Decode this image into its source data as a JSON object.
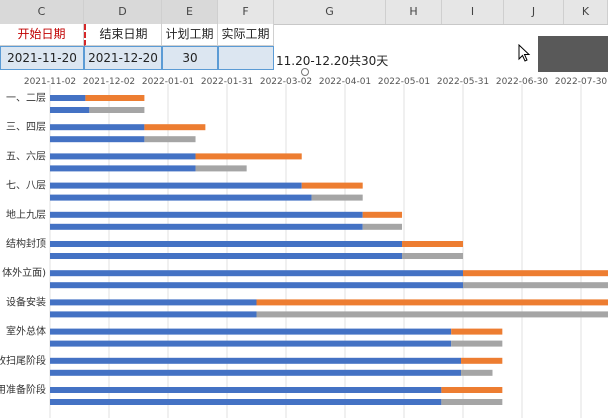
{
  "columns": [
    {
      "letter": "C"
    },
    {
      "letter": "D"
    },
    {
      "letter": "E"
    },
    {
      "letter": "F"
    },
    {
      "letter": "G"
    },
    {
      "letter": "H"
    },
    {
      "letter": "I"
    },
    {
      "letter": "J"
    },
    {
      "letter": "K"
    }
  ],
  "table": {
    "headers": [
      "开始日期",
      "结束日期",
      "计划工期",
      "实际工期"
    ],
    "values": [
      "2021-11-20",
      "2021-12-20",
      "30",
      ""
    ],
    "note": "11.20-12.20共30天"
  },
  "colors": {
    "planned": "#4472c4",
    "overrun": "#ed7d31",
    "actual": "#a5a5a5",
    "header_red": "#c00000"
  },
  "chart_data": {
    "type": "bar",
    "orientation": "horizontal-stacked-gantt",
    "x_ticks": [
      "2021-11-02",
      "2021-12-02",
      "2022-01-01",
      "2022-01-31",
      "2022-03-02",
      "2022-04-01",
      "2022-05-01",
      "2022-05-31",
      "2022-06-30",
      "2022-07-30"
    ],
    "categories": [
      "一、二层",
      "三、四层",
      "五、六层",
      "七、八层",
      "地上九层",
      "结构封顶",
      "幕墙(外立面)",
      "设备安装",
      "室外总体",
      "收扫尾阶段",
      "竣工准备阶段"
    ],
    "category_labels_visible": [
      "一、二层",
      "三、四层",
      "五、六层",
      "七、八层",
      "地上九层",
      "结构封顶",
      "体外立面)",
      "设备安装",
      "室外总体",
      "收扫尾阶段",
      "用准备阶段"
    ],
    "rows": [
      {
        "plan_start": "2021-11-02",
        "plan_end": "2021-11-20",
        "plan_finish": "2021-12-20",
        "actual_start": "2021-11-02",
        "actual_end": "2021-11-22",
        "actual_finish": "2021-12-20"
      },
      {
        "plan_start": "2021-11-02",
        "plan_end": "2021-12-20",
        "plan_finish": "2022-01-20",
        "actual_start": "2021-11-02",
        "actual_end": "2021-12-20",
        "actual_finish": "2022-01-15"
      },
      {
        "plan_start": "2021-11-02",
        "plan_end": "2022-01-15",
        "plan_finish": "2022-03-10",
        "actual_start": "2021-11-02",
        "actual_end": "2022-01-15",
        "actual_finish": "2022-02-10"
      },
      {
        "plan_start": "2021-11-02",
        "plan_end": "2022-03-10",
        "plan_finish": "2022-04-10",
        "actual_start": "2021-11-02",
        "actual_end": "2022-03-15",
        "actual_finish": "2022-04-10"
      },
      {
        "plan_start": "2021-11-02",
        "plan_end": "2022-04-10",
        "plan_finish": "2022-04-30",
        "actual_start": "2021-11-02",
        "actual_end": "2022-04-10",
        "actual_finish": "2022-04-30"
      },
      {
        "plan_start": "2021-11-02",
        "plan_end": "2022-04-30",
        "plan_finish": "2022-05-31",
        "actual_start": "2021-11-02",
        "actual_end": "2022-04-30",
        "actual_finish": "2022-05-31"
      },
      {
        "plan_start": "2021-11-02",
        "plan_end": "2022-05-31",
        "plan_finish": "2022-08-30",
        "actual_start": "2021-11-02",
        "actual_end": "2022-05-31",
        "actual_finish": "2022-08-30"
      },
      {
        "plan_start": "2021-11-02",
        "plan_end": "2022-02-15",
        "plan_finish": "2022-08-30",
        "actual_start": "2021-11-02",
        "actual_end": "2022-02-15",
        "actual_finish": "2022-08-25"
      },
      {
        "plan_start": "2021-11-02",
        "plan_end": "2022-05-25",
        "plan_finish": "2022-06-20",
        "actual_start": "2021-11-02",
        "actual_end": "2022-05-25",
        "actual_finish": "2022-06-20"
      },
      {
        "plan_start": "2021-11-02",
        "plan_end": "2022-05-30",
        "plan_finish": "2022-06-20",
        "actual_start": "2021-11-02",
        "actual_end": "2022-05-30",
        "actual_finish": "2022-06-15"
      },
      {
        "plan_start": "2021-11-02",
        "plan_end": "2022-05-20",
        "plan_finish": "2022-06-20",
        "actual_start": "2021-11-02",
        "actual_end": "2022-05-20",
        "actual_finish": "2022-06-20"
      }
    ]
  }
}
